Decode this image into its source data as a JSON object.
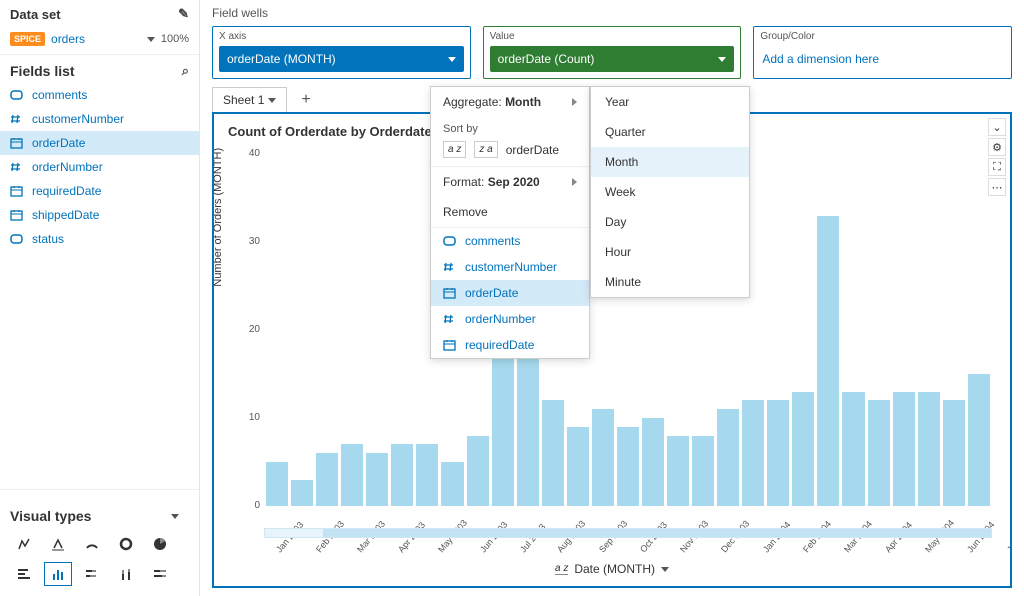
{
  "dataset": {
    "header": "Data set",
    "badge": "SPICE",
    "name": "orders",
    "pct": "100%"
  },
  "fieldsList": {
    "header": "Fields list",
    "items": [
      {
        "label": "comments",
        "icon": "text",
        "selected": false
      },
      {
        "label": "customerNumber",
        "icon": "hash",
        "selected": false
      },
      {
        "label": "orderDate",
        "icon": "date",
        "selected": true
      },
      {
        "label": "orderNumber",
        "icon": "hash",
        "selected": false
      },
      {
        "label": "requiredDate",
        "icon": "date",
        "selected": false
      },
      {
        "label": "shippedDate",
        "icon": "date",
        "selected": false
      },
      {
        "label": "status",
        "icon": "text",
        "selected": false
      }
    ]
  },
  "visualTypes": {
    "header": "Visual types"
  },
  "fieldWells": {
    "label": "Field wells",
    "xaxis": {
      "title": "X axis",
      "pill": "orderDate (MONTH)"
    },
    "value": {
      "title": "Value",
      "pill": "orderDate (Count)"
    },
    "group": {
      "title": "Group/Color",
      "placeholder": "Add a dimension here"
    }
  },
  "tabs": {
    "sheet": "Sheet 1"
  },
  "chart": {
    "title": "Count of Orderdate by Orderdate",
    "type": "bar",
    "yaxis_title": "Number of Orders (MONTH)",
    "xaxis_title": "Date (MONTH)",
    "ylim": [
      0,
      40
    ],
    "ytick_step": 10,
    "yticks": [
      "0",
      "10",
      "20",
      "30",
      "40"
    ],
    "bar_color": "#a6d9ee",
    "background_color": "#ffffff",
    "categories": [
      "Jan 2003",
      "Feb 2003",
      "Mar 2003",
      "Apr 2003",
      "May 2003",
      "Jun 2003",
      "Jul 2003",
      "Aug 2003",
      "Sep 2003",
      "Oct 2003",
      "Nov 2003",
      "Dec 2003",
      "Jan 2004",
      "Feb 2004",
      "Mar 2004",
      "Apr 2004",
      "May 2004",
      "Jun 2004",
      "Jul 2004",
      "Aug 2004",
      "Sep 2004",
      "Oct 2004",
      "Nov 2004",
      "Dec 2004",
      "Jan 2005",
      "Feb 2005",
      "Mar 2005",
      "Apr 2005",
      "May 2005"
    ],
    "values": [
      5,
      3,
      6,
      7,
      6,
      7,
      7,
      5,
      8,
      18,
      30,
      12,
      9,
      11,
      9,
      10,
      8,
      8,
      11,
      12,
      12,
      13,
      33,
      13,
      12,
      13,
      13,
      12,
      15
    ]
  },
  "dropdown1": {
    "aggregateLabel": "Aggregate:",
    "aggregateValue": "Month",
    "sortBy": "Sort by",
    "sortField": "orderDate",
    "formatLabel": "Format:",
    "formatValue": "Sep 2020",
    "remove": "Remove",
    "fields": [
      {
        "label": "comments",
        "icon": "text"
      },
      {
        "label": "customerNumber",
        "icon": "hash"
      },
      {
        "label": "orderDate",
        "icon": "date",
        "sel": true
      },
      {
        "label": "orderNumber",
        "icon": "hash"
      },
      {
        "label": "requiredDate",
        "icon": "date"
      }
    ]
  },
  "dropdown2": {
    "items": [
      "Year",
      "Quarter",
      "Month",
      "Week",
      "Day",
      "Hour",
      "Minute"
    ],
    "selected": "Month"
  }
}
